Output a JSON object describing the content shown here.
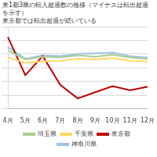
{
  "chart_data": {
    "type": "line",
    "title": "東1都3県の転入超過数の推移（マイナスは転出超過を示す）",
    "subtitle": "東京都では転出超過が続いている",
    "categories": [
      "4月",
      "5月",
      "6月",
      "7月",
      "8月",
      "9月",
      "10月",
      "11月",
      "12月"
    ],
    "series": [
      {
        "name": "埼玉県",
        "color": "#a9d08e",
        "values": [
          2500,
          1200,
          1600,
          1500,
          1800,
          1600,
          1900,
          1500,
          1300
        ]
      },
      {
        "name": "千葉県",
        "color": "#ffd966",
        "values": [
          1500,
          700,
          900,
          1000,
          1300,
          1200,
          1400,
          1000,
          900
        ]
      },
      {
        "name": "東京都",
        "color": "#c00000",
        "values": [
          4500,
          -1100,
          1700,
          -2500,
          -4500,
          -3600,
          -2700,
          -3300,
          -2800
        ]
      },
      {
        "name": "神奈川県",
        "color": "#9dc3e6",
        "values": [
          3000,
          1300,
          1800,
          1700,
          2000,
          2100,
          2200,
          1700,
          1500
        ]
      }
    ],
    "ylim": [
      -6000,
      6000
    ],
    "yticks": [
      -6000,
      -4000,
      -2000,
      0,
      2000,
      4000,
      6000
    ],
    "grid": true,
    "legend": "bottom",
    "marker": "none",
    "tick_labels": "x"
  }
}
